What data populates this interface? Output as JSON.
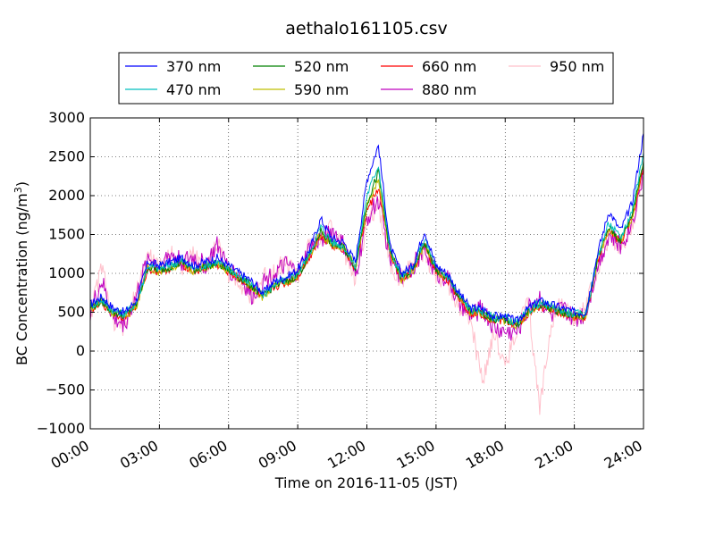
{
  "chart_data": {
    "type": "line",
    "title": "aethalo161105.csv",
    "xlabel": "Time on 2016-11-05 (JST)",
    "ylabel": "BC Concentration (ng/m",
    "ylabel_sup": "3",
    "ylabel_end": ")",
    "xlim": [
      "00:00",
      "24:00"
    ],
    "ylim": [
      -1000,
      3000
    ],
    "x_ticks": [
      "00:00",
      "03:00",
      "06:00",
      "09:00",
      "12:00",
      "15:00",
      "18:00",
      "21:00",
      "24:00"
    ],
    "y_ticks": [
      "−1000",
      "−500",
      "0",
      "500",
      "1000",
      "1500",
      "2000",
      "2500",
      "3000"
    ],
    "grid": true,
    "legend_position": "top-center-outside",
    "time_step_hours": 0.5,
    "x_hours": [
      0,
      0.5,
      1,
      1.5,
      2,
      2.5,
      3,
      3.5,
      4,
      4.5,
      5,
      5.5,
      6,
      6.5,
      7,
      7.5,
      8,
      8.5,
      9,
      9.5,
      10,
      10.5,
      11,
      11.5,
      12,
      12.5,
      13,
      13.5,
      14,
      14.5,
      15,
      15.5,
      16,
      16.5,
      17,
      17.5,
      18,
      18.5,
      19,
      19.5,
      20,
      20.5,
      21,
      21.5,
      22,
      22.5,
      23,
      23.5,
      24
    ],
    "series": [
      {
        "name": "370 nm",
        "color": "#0000ff",
        "values": [
          600,
          700,
          550,
          500,
          650,
          1150,
          1100,
          1150,
          1200,
          1100,
          1150,
          1200,
          1100,
          1000,
          900,
          750,
          900,
          950,
          1050,
          1300,
          1700,
          1450,
          1400,
          1150,
          2200,
          2650,
          1350,
          1000,
          1100,
          1550,
          1100,
          1000,
          750,
          550,
          550,
          450,
          450,
          380,
          550,
          650,
          600,
          550,
          500,
          500,
          1250,
          1800,
          1550,
          1900,
          2800
        ]
      },
      {
        "name": "470 nm",
        "color": "#00bfbf",
        "values": [
          580,
          660,
          520,
          480,
          620,
          1100,
          1060,
          1110,
          1160,
          1060,
          1110,
          1150,
          1060,
          960,
          860,
          720,
          870,
          910,
          1000,
          1250,
          1600,
          1400,
          1350,
          1100,
          2000,
          2400,
          1300,
          960,
          1060,
          1450,
          1060,
          960,
          720,
          530,
          520,
          430,
          430,
          360,
          520,
          620,
          570,
          520,
          480,
          480,
          1200,
          1650,
          1450,
          1800,
          2550
        ]
      },
      {
        "name": "520 nm",
        "color": "#008000",
        "values": [
          560,
          640,
          500,
          460,
          600,
          1080,
          1040,
          1090,
          1140,
          1040,
          1090,
          1130,
          1040,
          940,
          840,
          700,
          850,
          890,
          980,
          1220,
          1550,
          1380,
          1330,
          1080,
          1900,
          2300,
          1280,
          940,
          1040,
          1400,
          1040,
          940,
          700,
          510,
          500,
          410,
          410,
          340,
          500,
          600,
          550,
          500,
          460,
          460,
          1180,
          1600,
          1420,
          1750,
          2450
        ]
      },
      {
        "name": "590 nm",
        "color": "#bfbf00",
        "values": [
          550,
          630,
          490,
          450,
          590,
          1070,
          1030,
          1080,
          1130,
          1030,
          1080,
          1120,
          1030,
          930,
          830,
          690,
          840,
          880,
          970,
          1210,
          1520,
          1370,
          1320,
          1070,
          1850,
          2200,
          1270,
          930,
          1030,
          1380,
          1030,
          930,
          690,
          500,
          490,
          400,
          400,
          330,
          490,
          590,
          540,
          490,
          450,
          450,
          1170,
          1580,
          1410,
          1720,
          2400
        ]
      },
      {
        "name": "660 nm",
        "color": "#ff0000",
        "values": [
          540,
          620,
          480,
          440,
          580,
          1060,
          1020,
          1070,
          1120,
          1020,
          1070,
          1110,
          1020,
          920,
          820,
          680,
          830,
          870,
          960,
          1200,
          1500,
          1360,
          1310,
          1060,
          1800,
          2100,
          1260,
          920,
          1020,
          1360,
          1020,
          920,
          680,
          490,
          480,
          390,
          390,
          320,
          480,
          580,
          530,
          480,
          440,
          440,
          1160,
          1560,
          1400,
          1700,
          2350
        ]
      },
      {
        "name": "880 nm",
        "color": "#bf00bf",
        "values": [
          500,
          900,
          400,
          350,
          700,
          1200,
          1100,
          1250,
          1150,
          1200,
          1100,
          1350,
          1050,
          950,
          700,
          900,
          1000,
          1100,
          1000,
          1300,
          1450,
          1550,
          1350,
          950,
          1700,
          1950,
          1200,
          950,
          1100,
          1300,
          1000,
          950,
          600,
          450,
          550,
          300,
          250,
          250,
          550,
          700,
          450,
          550,
          400,
          500,
          1100,
          1500,
          1350,
          1650,
          2300
        ]
      },
      {
        "name": "950 nm",
        "color": "#ffc0cb",
        "values": [
          450,
          1100,
          350,
          300,
          750,
          1250,
          1050,
          1300,
          1100,
          1250,
          1050,
          1400,
          1000,
          900,
          650,
          950,
          1050,
          1150,
          950,
          1350,
          1400,
          1600,
          1300,
          900,
          1650,
          1900,
          1150,
          900,
          1150,
          1250,
          950,
          900,
          550,
          400,
          -400,
          250,
          -200,
          300,
          600,
          -750,
          400,
          650,
          350,
          550,
          1050,
          1450,
          1300,
          1600,
          2250
        ]
      }
    ]
  }
}
